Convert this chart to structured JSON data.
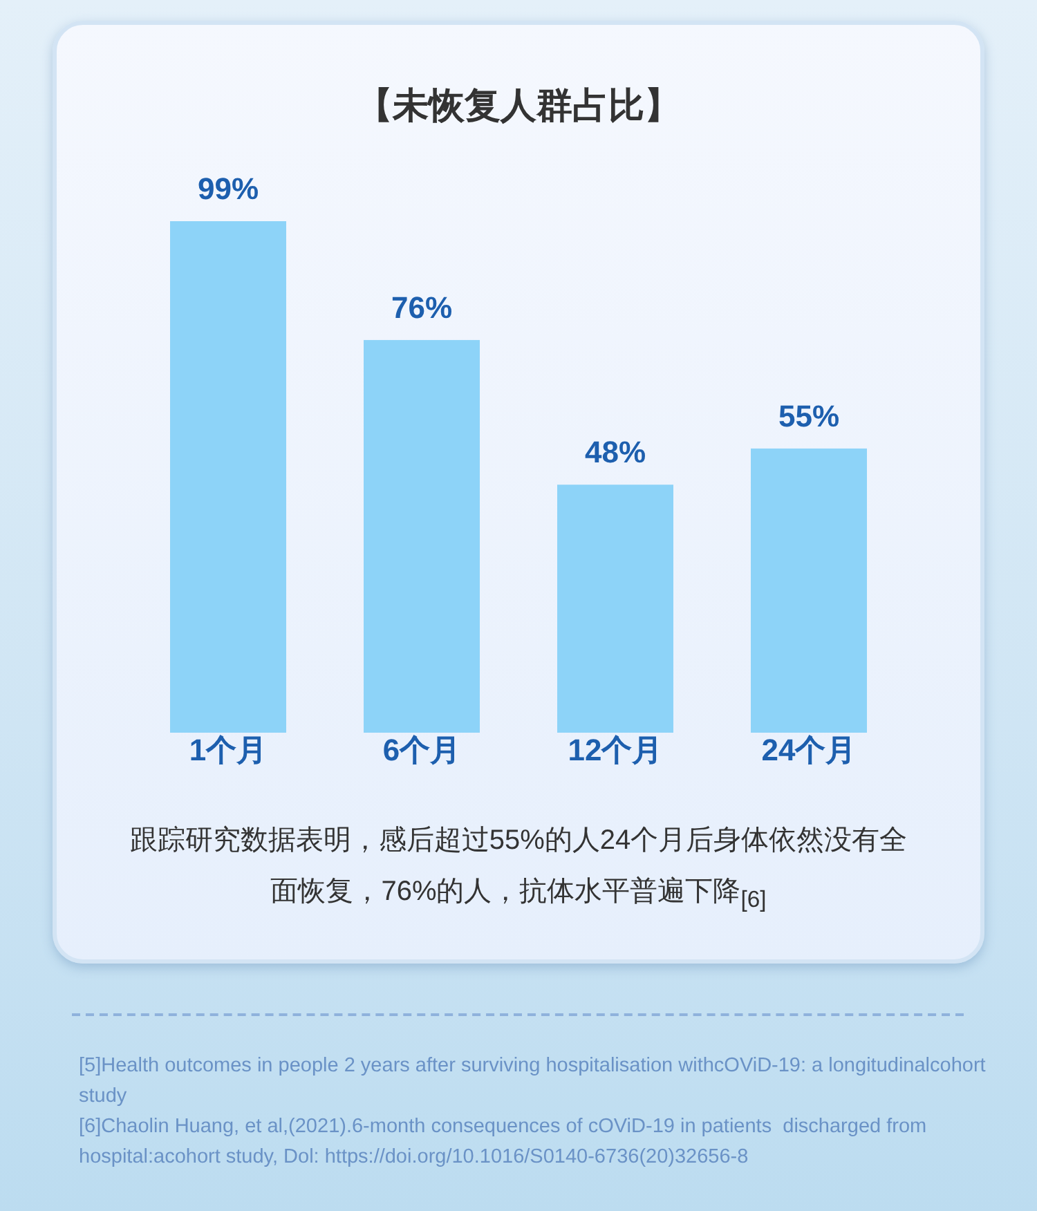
{
  "chart_data": {
    "type": "bar",
    "title": "【未恢复人群占比】",
    "categories": [
      "1个月",
      "6个月",
      "12个月",
      "24个月"
    ],
    "values": [
      99,
      76,
      48,
      55
    ],
    "color": "#8dd3f8",
    "value_labels": [
      "99%",
      "76%",
      "48%",
      "55%"
    ],
    "annotations": [
      "跟踪研究数据表明，感后超过55%的人24个月后身体依然没有全面恢复，76%的人，抗体水平普遍下降$_{[6]}$",
      "[5]Health outcomes in people 2 years after surviving hospitalisation withcOViD-19: a longitudinalcohort study",
      "[6]Chaolin Huang, et al,(2021).6-month consequences of cOViD-19 in patients  discharged from hospital:acohort study, Dol: https://doi.org/10.1016/S0140-6736(20)32656-8"
    ]
  }
}
